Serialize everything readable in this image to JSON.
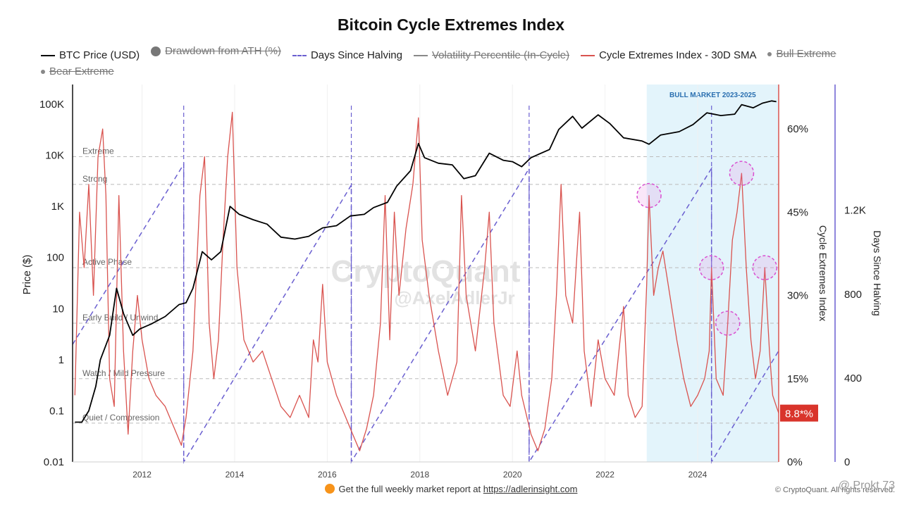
{
  "title": "Bitcoin Cycle Extremes Index",
  "legend": [
    {
      "label": "BTC Price (USD)",
      "kind": "line",
      "color": "#000000",
      "active": true
    },
    {
      "label": "Drawdown from ATH (%)",
      "kind": "dot",
      "color": "#777777",
      "active": false
    },
    {
      "label": "Days Since Halving",
      "kind": "dash",
      "color": "#6a5fd0",
      "active": true
    },
    {
      "label": "Volatility Percentile (In-Cycle)",
      "kind": "line",
      "color": "#888888",
      "active": false
    },
    {
      "label": "Cycle Extremes Index - 30D SMA",
      "kind": "line",
      "color": "#d9534f",
      "active": true
    },
    {
      "label": "Bull Extreme",
      "kind": "smalldot",
      "color": "#888888",
      "active": false
    },
    {
      "label": "Bear Extreme",
      "kind": "smalldot",
      "color": "#888888",
      "active": false
    }
  ],
  "chart_data": {
    "type": "line",
    "title": "Bitcoin Cycle Extremes Index",
    "x_range": [
      2010.5,
      2025.75
    ],
    "x_ticks": [
      "2012",
      "2014",
      "2016",
      "2018",
      "2020",
      "2022",
      "2024"
    ],
    "axes": {
      "price": {
        "label": "Price ($)",
        "scale": "log",
        "range": [
          0.01,
          100000
        ],
        "ticks": [
          "0.01",
          "0.1",
          "1",
          "10",
          "100",
          "1K",
          "10K",
          "100K"
        ]
      },
      "cei": {
        "label": "Cycle Extremes Index",
        "range": [
          0,
          68
        ],
        "ticks": [
          "0%",
          "15%",
          "30%",
          "45%",
          "60%"
        ]
      },
      "halving": {
        "label": "Days Since Halving",
        "range": [
          0,
          1800
        ],
        "ticks": [
          "0",
          "400",
          "800",
          "1.2K"
        ]
      }
    },
    "zones": [
      {
        "label": "Extreme",
        "value": 55
      },
      {
        "label": "Strong",
        "value": 50
      },
      {
        "label": "Active Phase",
        "value": 35
      },
      {
        "label": "Early Build / Unwind",
        "value": 25
      },
      {
        "label": "Watch / Mild Pressure",
        "value": 15
      },
      {
        "label": "Quiet / Compression",
        "value": 7
      }
    ],
    "shaded_region": {
      "label": "BULL MARKET 2023-2025",
      "x": [
        2022.9,
        2025.75
      ],
      "color": "#e3f4fb"
    },
    "halvings": [
      2012.9,
      2016.52,
      2020.36,
      2024.3
    ],
    "current_value_label": "8.8*%",
    "series": [
      {
        "name": "BTC Price (USD)",
        "axis": "price",
        "color": "#000000",
        "points": [
          [
            2010.55,
            0.06
          ],
          [
            2010.7,
            0.06
          ],
          [
            2010.85,
            0.1
          ],
          [
            2011.0,
            0.3
          ],
          [
            2011.1,
            1
          ],
          [
            2011.3,
            3
          ],
          [
            2011.45,
            25
          ],
          [
            2011.6,
            8
          ],
          [
            2011.8,
            3
          ],
          [
            2011.95,
            4
          ],
          [
            2012.2,
            5
          ],
          [
            2012.5,
            7
          ],
          [
            2012.8,
            12
          ],
          [
            2012.95,
            13
          ],
          [
            2013.1,
            25
          ],
          [
            2013.3,
            130
          ],
          [
            2013.5,
            90
          ],
          [
            2013.7,
            130
          ],
          [
            2013.9,
            1000
          ],
          [
            2014.1,
            700
          ],
          [
            2014.4,
            550
          ],
          [
            2014.7,
            450
          ],
          [
            2015.0,
            250
          ],
          [
            2015.3,
            230
          ],
          [
            2015.6,
            260
          ],
          [
            2015.9,
            380
          ],
          [
            2016.2,
            420
          ],
          [
            2016.5,
            650
          ],
          [
            2016.8,
            700
          ],
          [
            2017.0,
            950
          ],
          [
            2017.3,
            1200
          ],
          [
            2017.5,
            2500
          ],
          [
            2017.8,
            5000
          ],
          [
            2017.97,
            17000
          ],
          [
            2018.1,
            9000
          ],
          [
            2018.4,
            7000
          ],
          [
            2018.7,
            6500
          ],
          [
            2018.95,
            3500
          ],
          [
            2019.2,
            4000
          ],
          [
            2019.5,
            11000
          ],
          [
            2019.8,
            8000
          ],
          [
            2020.0,
            7500
          ],
          [
            2020.2,
            6000
          ],
          [
            2020.4,
            9000
          ],
          [
            2020.8,
            13000
          ],
          [
            2021.0,
            32000
          ],
          [
            2021.3,
            58000
          ],
          [
            2021.5,
            34000
          ],
          [
            2021.85,
            62000
          ],
          [
            2022.1,
            42000
          ],
          [
            2022.4,
            22000
          ],
          [
            2022.8,
            19000
          ],
          [
            2022.95,
            16500
          ],
          [
            2023.2,
            25000
          ],
          [
            2023.6,
            29000
          ],
          [
            2023.9,
            40000
          ],
          [
            2024.2,
            68000
          ],
          [
            2024.5,
            60000
          ],
          [
            2024.8,
            64000
          ],
          [
            2024.95,
            98000
          ],
          [
            2025.2,
            85000
          ],
          [
            2025.4,
            105000
          ],
          [
            2025.6,
            116000
          ],
          [
            2025.7,
            112000
          ]
        ]
      },
      {
        "name": "Cycle Extremes Index - 30D SMA",
        "axis": "cei",
        "color": "#d9534f",
        "points": [
          [
            2010.55,
            12
          ],
          [
            2010.65,
            45
          ],
          [
            2010.75,
            35
          ],
          [
            2010.85,
            50
          ],
          [
            2010.95,
            30
          ],
          [
            2011.05,
            55
          ],
          [
            2011.15,
            60
          ],
          [
            2011.22,
            48
          ],
          [
            2011.3,
            15
          ],
          [
            2011.4,
            10
          ],
          [
            2011.5,
            48
          ],
          [
            2011.6,
            20
          ],
          [
            2011.7,
            5
          ],
          [
            2011.8,
            20
          ],
          [
            2011.9,
            30
          ],
          [
            2012.0,
            22
          ],
          [
            2012.15,
            15
          ],
          [
            2012.3,
            12
          ],
          [
            2012.5,
            10
          ],
          [
            2012.7,
            6
          ],
          [
            2012.85,
            3
          ],
          [
            2012.95,
            8
          ],
          [
            2013.1,
            20
          ],
          [
            2013.25,
            48
          ],
          [
            2013.35,
            55
          ],
          [
            2013.45,
            25
          ],
          [
            2013.55,
            15
          ],
          [
            2013.65,
            22
          ],
          [
            2013.75,
            40
          ],
          [
            2013.85,
            55
          ],
          [
            2013.95,
            63
          ],
          [
            2014.05,
            35
          ],
          [
            2014.2,
            22
          ],
          [
            2014.4,
            18
          ],
          [
            2014.6,
            20
          ],
          [
            2014.8,
            15
          ],
          [
            2015.0,
            10
          ],
          [
            2015.2,
            8
          ],
          [
            2015.4,
            12
          ],
          [
            2015.6,
            8
          ],
          [
            2015.7,
            22
          ],
          [
            2015.8,
            18
          ],
          [
            2015.9,
            32
          ],
          [
            2016.0,
            18
          ],
          [
            2016.2,
            12
          ],
          [
            2016.4,
            8
          ],
          [
            2016.55,
            5
          ],
          [
            2016.7,
            2
          ],
          [
            2016.85,
            6
          ],
          [
            2017.0,
            12
          ],
          [
            2017.15,
            25
          ],
          [
            2017.25,
            48
          ],
          [
            2017.35,
            22
          ],
          [
            2017.45,
            45
          ],
          [
            2017.55,
            30
          ],
          [
            2017.7,
            42
          ],
          [
            2017.85,
            50
          ],
          [
            2017.97,
            62
          ],
          [
            2018.05,
            40
          ],
          [
            2018.2,
            30
          ],
          [
            2018.4,
            20
          ],
          [
            2018.6,
            12
          ],
          [
            2018.8,
            18
          ],
          [
            2018.9,
            48
          ],
          [
            2019.0,
            30
          ],
          [
            2019.2,
            20
          ],
          [
            2019.4,
            35
          ],
          [
            2019.5,
            45
          ],
          [
            2019.6,
            25
          ],
          [
            2019.8,
            12
          ],
          [
            2019.95,
            10
          ],
          [
            2020.1,
            20
          ],
          [
            2020.2,
            12
          ],
          [
            2020.4,
            5
          ],
          [
            2020.55,
            2
          ],
          [
            2020.7,
            6
          ],
          [
            2020.85,
            15
          ],
          [
            2020.95,
            30
          ],
          [
            2021.05,
            50
          ],
          [
            2021.15,
            30
          ],
          [
            2021.3,
            25
          ],
          [
            2021.45,
            45
          ],
          [
            2021.55,
            20
          ],
          [
            2021.7,
            10
          ],
          [
            2021.85,
            22
          ],
          [
            2022.0,
            15
          ],
          [
            2022.2,
            12
          ],
          [
            2022.4,
            28
          ],
          [
            2022.5,
            12
          ],
          [
            2022.65,
            8
          ],
          [
            2022.8,
            10
          ],
          [
            2022.9,
            32
          ],
          [
            2022.95,
            48
          ],
          [
            2023.05,
            30
          ],
          [
            2023.15,
            35
          ],
          [
            2023.25,
            38
          ],
          [
            2023.4,
            30
          ],
          [
            2023.55,
            22
          ],
          [
            2023.7,
            15
          ],
          [
            2023.85,
            10
          ],
          [
            2024.0,
            12
          ],
          [
            2024.15,
            15
          ],
          [
            2024.25,
            20
          ],
          [
            2024.3,
            35
          ],
          [
            2024.4,
            15
          ],
          [
            2024.55,
            12
          ],
          [
            2024.65,
            25
          ],
          [
            2024.75,
            40
          ],
          [
            2024.85,
            45
          ],
          [
            2024.95,
            52
          ],
          [
            2025.05,
            35
          ],
          [
            2025.15,
            22
          ],
          [
            2025.25,
            15
          ],
          [
            2025.35,
            20
          ],
          [
            2025.45,
            35
          ],
          [
            2025.55,
            20
          ],
          [
            2025.62,
            12
          ],
          [
            2025.7,
            10
          ],
          [
            2025.75,
            8.8
          ]
        ]
      },
      {
        "name": "Days Since Halving",
        "axis": "halving",
        "color": "#6a5fd0",
        "points": [
          [
            2010.5,
            560
          ],
          [
            2012.9,
            1420
          ],
          [
            2012.9,
            0
          ],
          [
            2016.52,
            1320
          ],
          [
            2016.52,
            0
          ],
          [
            2020.36,
            1400
          ],
          [
            2020.36,
            0
          ],
          [
            2024.3,
            1400
          ],
          [
            2024.3,
            0
          ],
          [
            2025.75,
            530
          ]
        ]
      }
    ],
    "highlights": [
      2022.95,
      2024.3,
      2024.65,
      2024.95,
      2025.45
    ]
  },
  "footer": {
    "text": "Get the full weekly market report at ",
    "link": "https://adlerinsight.com"
  },
  "credit": "© CryptoQuant. All rights reserved.",
  "credit_overlay": "@ Prokt 73",
  "watermark": {
    "line1": "CryptoQuant",
    "line2": "@AxelAdlerJr"
  }
}
